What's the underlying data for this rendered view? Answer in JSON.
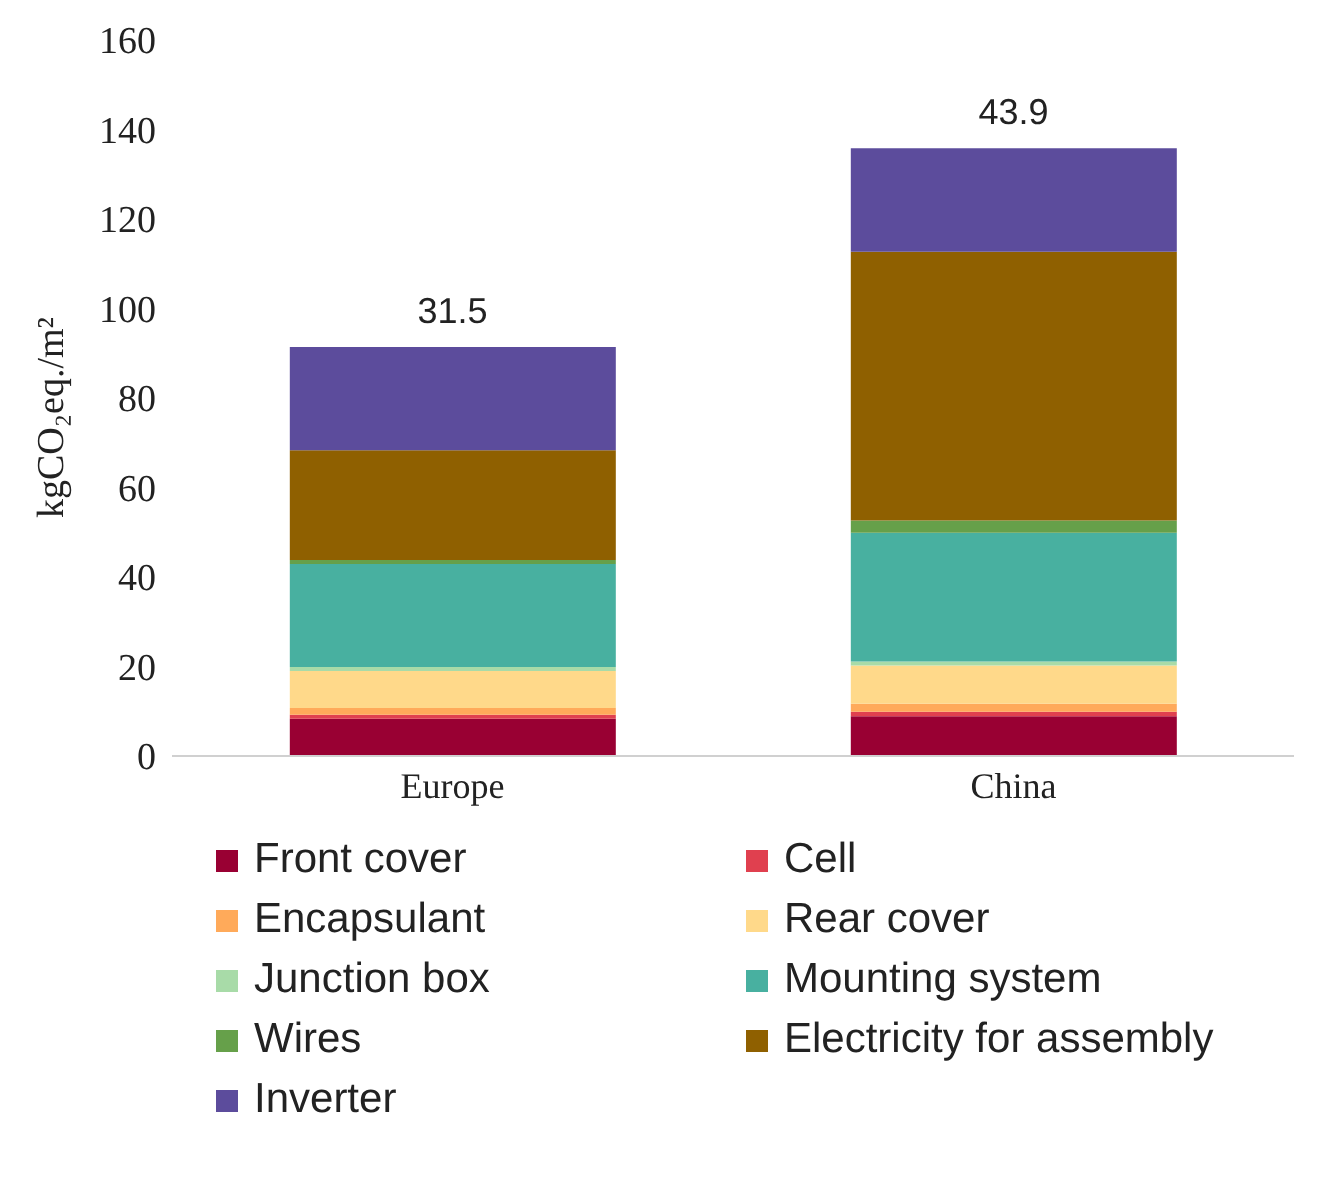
{
  "chart_data": {
    "type": "bar",
    "stacked": true,
    "ylabel": "kgCO₂eq./m²",
    "categories": [
      "Europe",
      "China"
    ],
    "ylim": [
      0,
      160
    ],
    "yticks": [
      0,
      20,
      40,
      60,
      80,
      100,
      120,
      140,
      160
    ],
    "grid": false,
    "legend": "bottom",
    "series": [
      {
        "name": "Front cover",
        "color": "#990033",
        "values": [
          8.3,
          8.9
        ]
      },
      {
        "name": "Cell",
        "color": "#e0404f",
        "values": [
          0.9,
          1.0
        ]
      },
      {
        "name": "Encapsulant",
        "color": "#ffaa5a",
        "values": [
          1.5,
          1.8
        ]
      },
      {
        "name": "Rear cover",
        "color": "#ffd98a",
        "values": [
          8.3,
          8.5
        ]
      },
      {
        "name": "Junction box",
        "color": "#a8dba8",
        "values": [
          0.9,
          0.9
        ]
      },
      {
        "name": "Mounting system",
        "color": "#48b0a0",
        "values": [
          23.0,
          28.8
        ]
      },
      {
        "name": "Wires",
        "color": "#66a04a",
        "values": [
          0.9,
          2.7
        ]
      },
      {
        "name": "Electricity for assembly",
        "color": "#8f6000",
        "values": [
          24.5,
          60.1
        ]
      },
      {
        "name": "Inverter",
        "color": "#5c4c9c",
        "values": [
          23.1,
          23.1
        ]
      }
    ],
    "annotations": [
      {
        "text": "31.5",
        "x": "Europe",
        "y": 91.4
      },
      {
        "text": "43.9",
        "x": "China",
        "y": 135.8
      }
    ]
  }
}
